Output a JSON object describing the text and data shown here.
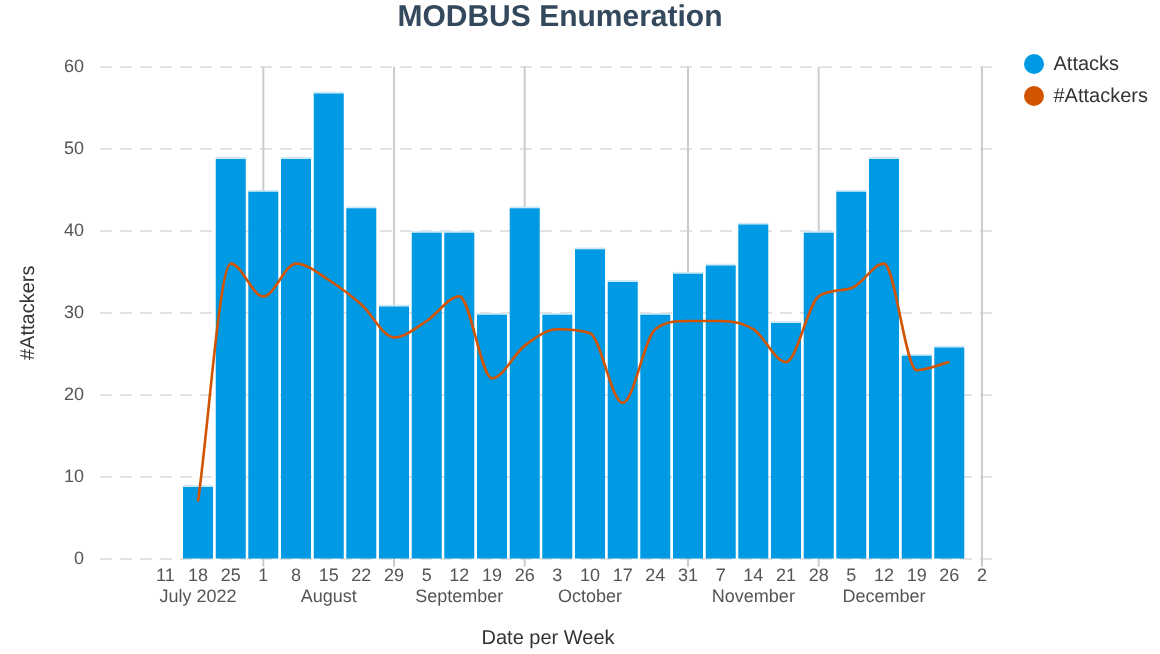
{
  "chart_data": {
    "type": "bar",
    "title": "MODBUS Enumeration",
    "xlabel": "Date per Week",
    "ylabel": "#Attackers",
    "x": [
      "2022-07-18",
      "2022-07-25",
      "2022-08-01",
      "2022-08-08",
      "2022-08-15",
      "2022-08-22",
      "2022-08-29",
      "2022-09-05",
      "2022-09-12",
      "2022-09-19",
      "2022-09-26",
      "2022-10-03",
      "2022-10-10",
      "2022-10-17",
      "2022-10-24",
      "2022-10-31",
      "2022-11-07",
      "2022-11-14",
      "2022-11-21",
      "2022-11-28",
      "2022-12-05",
      "2022-12-12",
      "2022-12-19",
      "2022-12-26"
    ],
    "series": [
      {
        "name": "Attacks",
        "color": "#009ae4",
        "values": [
          9,
          49,
          45,
          49,
          57,
          43,
          31,
          40,
          40,
          30,
          43,
          30,
          38,
          34,
          30,
          35,
          36,
          41,
          29,
          40,
          45,
          49,
          25,
          26
        ]
      },
      {
        "name": "#Attackers",
        "type": "line",
        "color": "#d35400",
        "marker": "none",
        "values": [
          7,
          36,
          32,
          36,
          34,
          31,
          27,
          29,
          32,
          22,
          26,
          28,
          27.5,
          19,
          28,
          29,
          29,
          28,
          24,
          32,
          33,
          36,
          23,
          24
        ]
      }
    ],
    "xlim": [
      "2022-06-27",
      "2023-01-05"
    ],
    "xticks": [
      {
        "value": "2022-07-11",
        "label": "11"
      },
      {
        "value": "2022-07-18",
        "label": "18\nJuly 2022"
      },
      {
        "value": "2022-07-25",
        "label": "25"
      },
      {
        "value": "2022-08-01",
        "label": "1"
      },
      {
        "value": "2022-08-08",
        "label": "8"
      },
      {
        "value": "2022-08-15",
        "label": "15\nAugust"
      },
      {
        "value": "2022-08-22",
        "label": "22"
      },
      {
        "value": "2022-08-29",
        "label": "29"
      },
      {
        "value": "2022-09-05",
        "label": "5"
      },
      {
        "value": "2022-09-12",
        "label": "12\nSeptember"
      },
      {
        "value": "2022-09-19",
        "label": "19"
      },
      {
        "value": "2022-09-26",
        "label": "26"
      },
      {
        "value": "2022-10-03",
        "label": "3"
      },
      {
        "value": "2022-10-10",
        "label": "10\nOctober"
      },
      {
        "value": "2022-10-17",
        "label": "17"
      },
      {
        "value": "2022-10-24",
        "label": "24"
      },
      {
        "value": "2022-10-31",
        "label": "31"
      },
      {
        "value": "2022-11-07",
        "label": "7"
      },
      {
        "value": "2022-11-14",
        "label": "14\nNovember"
      },
      {
        "value": "2022-11-21",
        "label": "21"
      },
      {
        "value": "2022-11-28",
        "label": "28"
      },
      {
        "value": "2022-12-05",
        "label": "5"
      },
      {
        "value": "2022-12-12",
        "label": "12\nDecember"
      },
      {
        "value": "2022-12-19",
        "label": "19"
      },
      {
        "value": "2022-12-26",
        "label": "26"
      },
      {
        "value": "2023-01-02",
        "label": "2"
      }
    ],
    "ylim": [
      0,
      60
    ],
    "yticks": [
      0,
      10,
      20,
      30,
      40,
      50,
      60
    ],
    "grid": "y",
    "legend": "top right",
    "ref_lines": [
      {
        "axis": "x",
        "value": "2022-08-01",
        "color": "#c8ccd2"
      },
      {
        "axis": "x",
        "value": "2022-08-29",
        "color": "#c8ccd2"
      },
      {
        "axis": "x",
        "value": "2022-09-26",
        "color": "#c8ccd2"
      },
      {
        "axis": "x",
        "value": "2022-10-31",
        "color": "#c8ccd2"
      },
      {
        "axis": "x",
        "value": "2022-11-28",
        "color": "#c8ccd2"
      },
      {
        "axis": "x",
        "value": "2023-01-02",
        "color": "#c8ccd2"
      }
    ]
  }
}
